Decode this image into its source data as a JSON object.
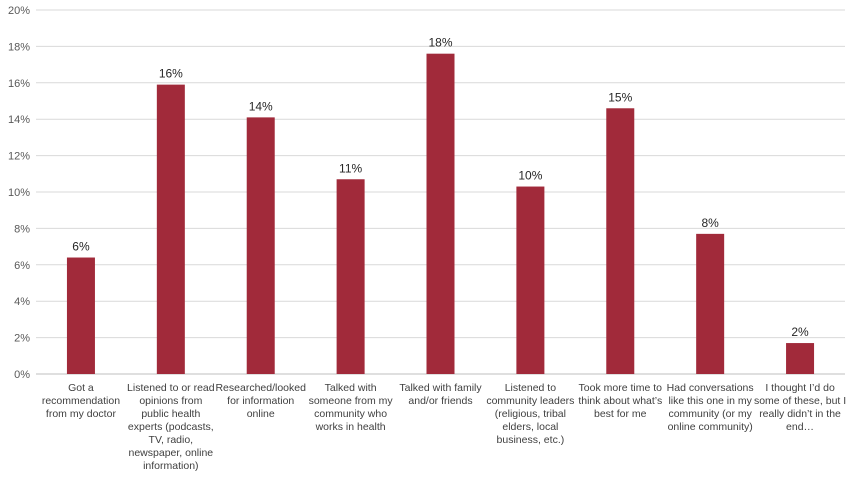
{
  "chart_data": {
    "type": "bar",
    "categories": [
      [
        "Got a",
        "recommendation",
        "from my doctor"
      ],
      [
        "Listened to or read",
        "opinions from",
        "public health",
        "experts (podcasts,",
        "TV, radio,",
        "newspaper, online",
        "information)"
      ],
      [
        "Researched/looked",
        "for information",
        "online"
      ],
      [
        "Talked with",
        "someone from my",
        "community who",
        "works in health"
      ],
      [
        "Talked with family",
        "and/or friends"
      ],
      [
        "Listened to",
        "community leaders",
        "(religious, tribal",
        "elders, local",
        "business, etc.)"
      ],
      [
        "Took more time to",
        "think about what’s",
        "best for me"
      ],
      [
        "Had conversations",
        "like this one in my",
        "community (or my",
        "online community)"
      ],
      [
        "I thought I’d do",
        "some of these, but I",
        "really didn’t in the",
        "end…"
      ]
    ],
    "values": [
      6.4,
      15.9,
      14.1,
      10.7,
      17.6,
      10.3,
      14.6,
      7.7,
      1.7
    ],
    "data_labels": [
      "6%",
      "16%",
      "14%",
      "11%",
      "18%",
      "10%",
      "15%",
      "8%",
      "2%"
    ],
    "y_ticks": [
      "0%",
      "2%",
      "4%",
      "6%",
      "8%",
      "10%",
      "12%",
      "14%",
      "16%",
      "18%",
      "20%"
    ],
    "ylim": [
      0,
      20
    ],
    "title": "",
    "xlabel": "",
    "ylabel": "",
    "grid": true,
    "colors": {
      "bar": "#A12A3A",
      "grid": "#D9D9D9",
      "axis": "#BFBFBF"
    }
  }
}
